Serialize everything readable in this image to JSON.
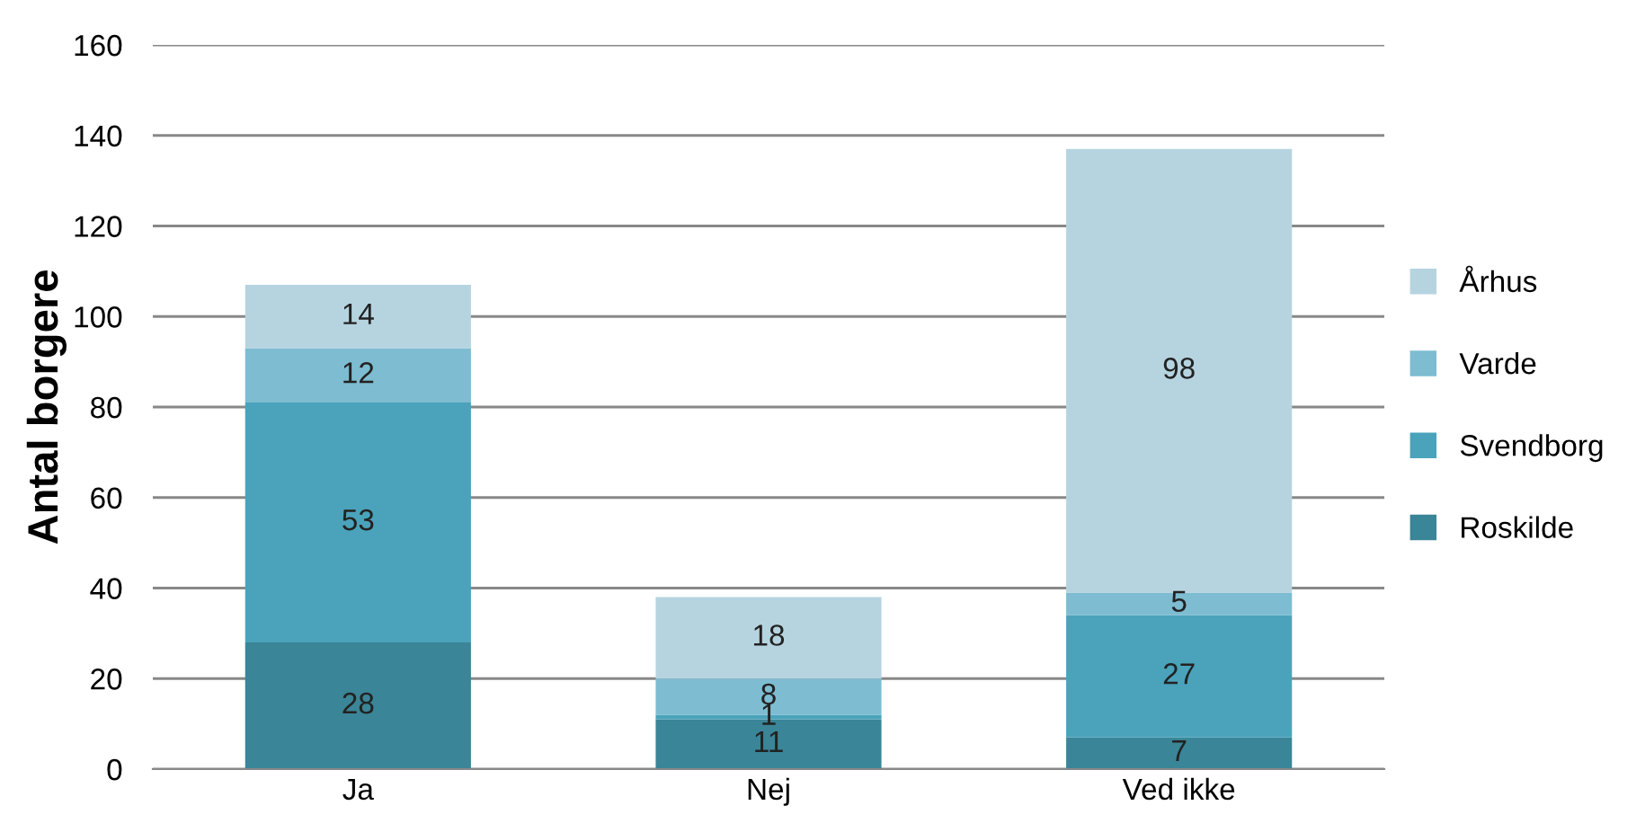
{
  "chart_data": {
    "type": "bar",
    "stacked": true,
    "ylabel": "Antal borgere",
    "categories": [
      "Ja",
      "Nej",
      "Ved ikke"
    ],
    "series": [
      {
        "name": "Roskilde",
        "color": "#3a8597",
        "values": [
          28,
          11,
          7
        ]
      },
      {
        "name": "Svendborg",
        "color": "#4aa3bb",
        "values": [
          53,
          1,
          27
        ]
      },
      {
        "name": "Varde",
        "color": "#7dbcd1",
        "values": [
          12,
          8,
          5
        ]
      },
      {
        "name": "Århus",
        "color": "#b6d4e0",
        "values": [
          14,
          18,
          98
        ]
      }
    ],
    "ylim": [
      0,
      160
    ],
    "yticks": [
      0,
      20,
      40,
      60,
      80,
      100,
      120,
      140,
      160
    ],
    "grid": "y",
    "legend": "right",
    "data_labels": true
  }
}
